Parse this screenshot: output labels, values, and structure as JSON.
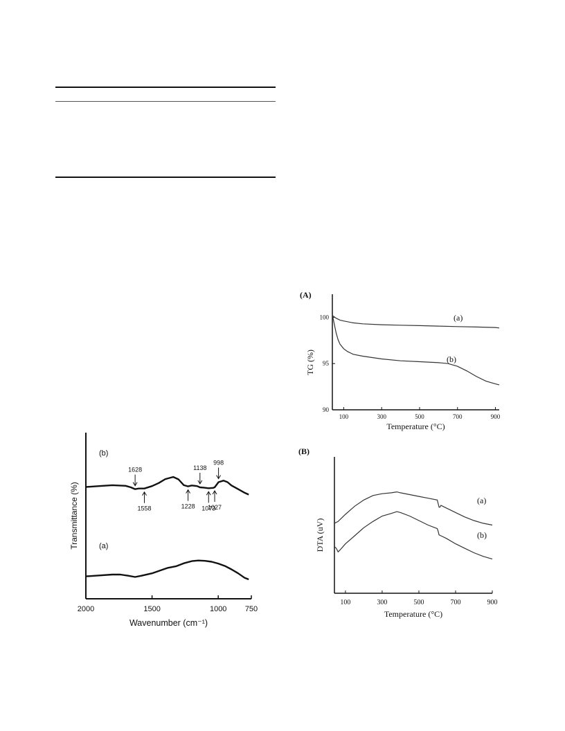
{
  "chart_data": [
    {
      "type": "line",
      "panel_label": "",
      "xlabel": "Wavenumber (cm⁻¹)",
      "ylabel": "Transmittance (%)",
      "xlim": [
        2000,
        750
      ],
      "x_ticks": [
        "2000",
        "1500",
        "1000",
        "750"
      ],
      "x_tick_values": [
        2000,
        1500,
        1000,
        750
      ],
      "series": [
        {
          "name": "(b)",
          "x": [
            2000,
            1900,
            1800,
            1700,
            1660,
            1628,
            1600,
            1558,
            1500,
            1450,
            1400,
            1340,
            1300,
            1260,
            1228,
            1200,
            1160,
            1138,
            1110,
            1073,
            1040,
            1027,
            998,
            960,
            930,
            900,
            850,
            800,
            770
          ],
          "y": [
            0.67,
            0.7,
            0.73,
            0.71,
            0.66,
            0.6,
            0.62,
            0.62,
            0.7,
            0.8,
            0.93,
            1.0,
            0.92,
            0.73,
            0.69,
            0.72,
            0.7,
            0.66,
            0.65,
            0.63,
            0.64,
            0.66,
            0.83,
            0.88,
            0.83,
            0.72,
            0.6,
            0.48,
            0.42
          ]
        },
        {
          "name": "(a)",
          "x": [
            2000,
            1900,
            1800,
            1740,
            1680,
            1628,
            1580,
            1500,
            1420,
            1380,
            1320,
            1260,
            1200,
            1150,
            1100,
            1050,
            1000,
            950,
            900,
            850,
            800,
            770
          ],
          "y": [
            0.1,
            0.13,
            0.16,
            0.16,
            0.12,
            0.08,
            0.12,
            0.2,
            0.32,
            0.38,
            0.43,
            0.53,
            0.6,
            0.62,
            0.61,
            0.58,
            0.52,
            0.44,
            0.33,
            0.2,
            0.05,
            0.0
          ]
        }
      ],
      "annotations": [
        {
          "text": "1628",
          "x": 1628,
          "position": "above"
        },
        {
          "text": "1558",
          "x": 1558,
          "position": "below"
        },
        {
          "text": "1228",
          "x": 1228,
          "position": "below"
        },
        {
          "text": "1138",
          "x": 1138,
          "position": "above"
        },
        {
          "text": "1073",
          "x": 1073,
          "position": "below"
        },
        {
          "text": "1027",
          "x": 1027,
          "position": "below"
        },
        {
          "text": "998",
          "x": 998,
          "position": "above"
        }
      ]
    },
    {
      "type": "line",
      "panel_label": "(A)",
      "xlabel": "Temperature (°C)",
      "ylabel": "TG   (%)",
      "xlim": [
        40,
        920
      ],
      "ylim": [
        90,
        102.5
      ],
      "x_ticks": [
        "100",
        "300",
        "500",
        "700",
        "900"
      ],
      "x_tick_values": [
        100,
        300,
        500,
        700,
        900
      ],
      "y_ticks": [
        "90",
        "95",
        "100"
      ],
      "y_tick_values": [
        90,
        95,
        100
      ],
      "series": [
        {
          "name": "(a)",
          "x": [
            40,
            60,
            80,
            100,
            150,
            200,
            300,
            400,
            500,
            600,
            700,
            800,
            900,
            920
          ],
          "y": [
            100.2,
            99.9,
            99.7,
            99.6,
            99.4,
            99.3,
            99.2,
            99.15,
            99.1,
            99.05,
            99.0,
            98.95,
            98.9,
            98.85
          ]
        },
        {
          "name": "(b)",
          "x": [
            40,
            50,
            60,
            70,
            80,
            100,
            120,
            150,
            200,
            300,
            400,
            500,
            600,
            650,
            700,
            750,
            800,
            850,
            900,
            920
          ],
          "y": [
            100.3,
            99.3,
            98.3,
            97.6,
            97.1,
            96.6,
            96.3,
            96.0,
            95.8,
            95.5,
            95.3,
            95.2,
            95.1,
            95.0,
            94.7,
            94.2,
            93.6,
            93.1,
            92.8,
            92.7
          ]
        }
      ]
    },
    {
      "type": "line",
      "panel_label": "(B)",
      "xlabel": "Temperature (°C)",
      "ylabel": "DTA (uV)",
      "xlim": [
        40,
        900
      ],
      "x_ticks": [
        "100",
        "300",
        "500",
        "700",
        "900"
      ],
      "x_tick_values": [
        100,
        300,
        500,
        700,
        900
      ],
      "series": [
        {
          "name": "(a)",
          "x": [
            40,
            60,
            100,
            150,
            200,
            250,
            300,
            350,
            380,
            400,
            450,
            500,
            550,
            600,
            605,
            610,
            615,
            620,
            630,
            650,
            700,
            750,
            800,
            850,
            900
          ],
          "y": [
            0.32,
            0.34,
            0.42,
            0.51,
            0.58,
            0.63,
            0.65,
            0.66,
            0.67,
            0.66,
            0.64,
            0.62,
            0.6,
            0.58,
            0.54,
            0.5,
            0.5,
            0.52,
            0.51,
            0.49,
            0.44,
            0.39,
            0.35,
            0.32,
            0.3
          ]
        },
        {
          "name": "(b)",
          "x": [
            40,
            50,
            60,
            70,
            100,
            150,
            200,
            250,
            300,
            350,
            380,
            400,
            450,
            500,
            550,
            600,
            605,
            610,
            620,
            650,
            700,
            750,
            800,
            850,
            900
          ],
          "y": [
            0.06,
            0.04,
            0.0,
            0.02,
            0.09,
            0.18,
            0.27,
            0.34,
            0.4,
            0.43,
            0.45,
            0.44,
            0.4,
            0.35,
            0.3,
            0.26,
            0.23,
            0.19,
            0.18,
            0.15,
            0.09,
            0.04,
            -0.01,
            -0.05,
            -0.08
          ]
        }
      ]
    }
  ]
}
